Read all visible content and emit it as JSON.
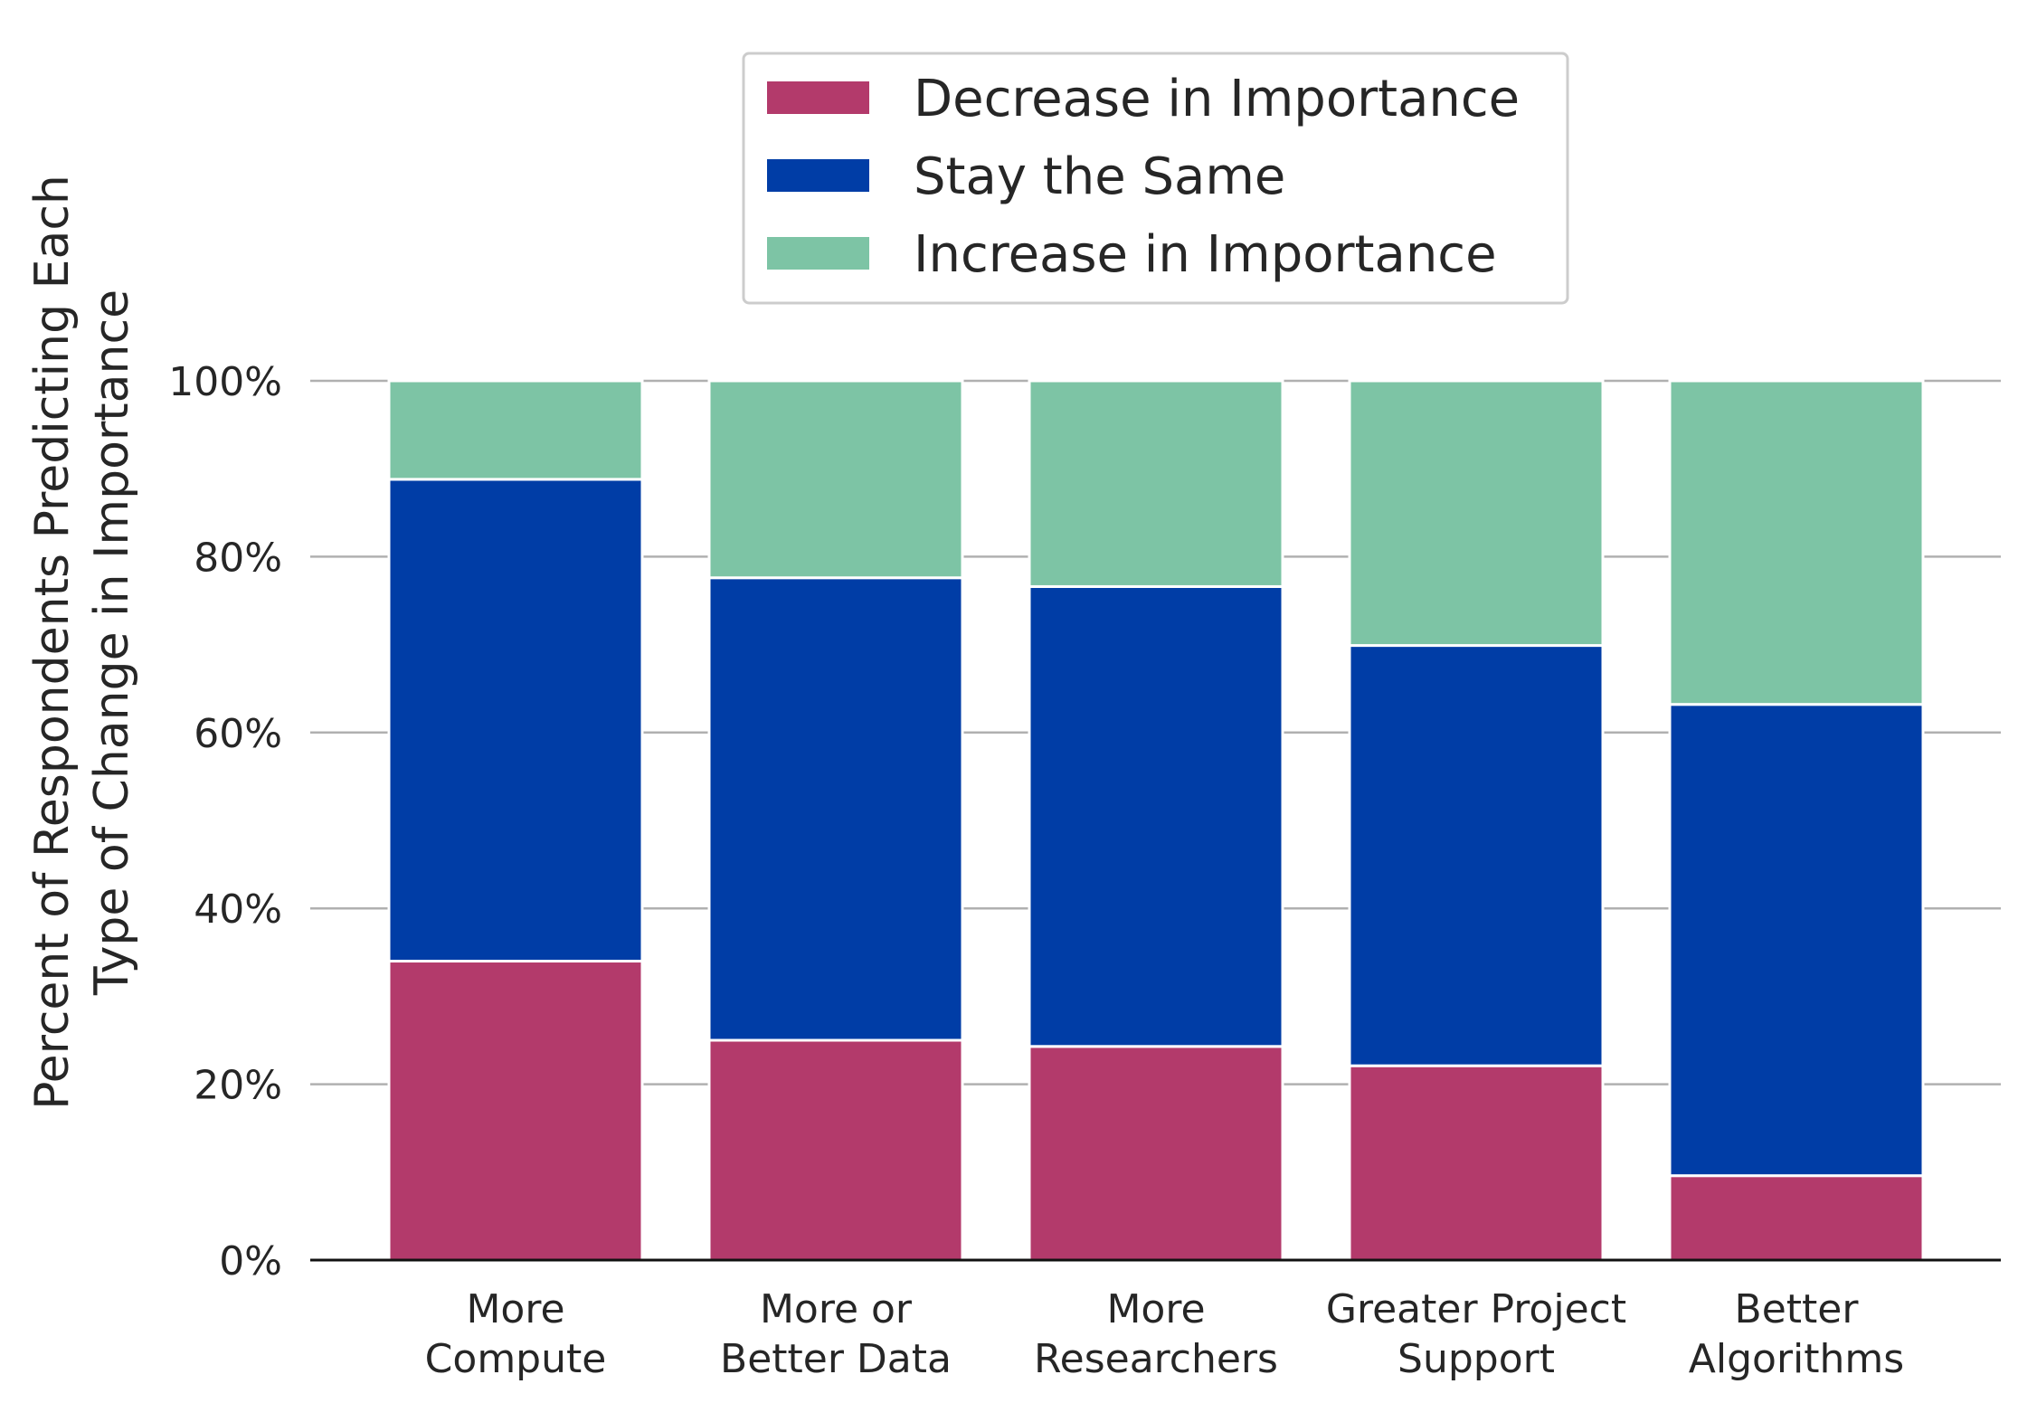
{
  "chart_data": {
    "type": "bar",
    "stacked": true,
    "categories": [
      [
        "More",
        "Compute"
      ],
      [
        "More or",
        "Better Data"
      ],
      [
        "More",
        "Researchers"
      ],
      [
        "Greater Project",
        "Support"
      ],
      [
        "Better",
        "Algorithms"
      ]
    ],
    "series": [
      {
        "name": "Decrease in Importance",
        "color": "#b33a6b",
        "values": [
          34.0,
          25.0,
          24.3,
          22.1,
          9.6
        ]
      },
      {
        "name": "Stay the Same",
        "color": "#003da6",
        "values": [
          54.8,
          52.6,
          52.3,
          47.8,
          53.6
        ]
      },
      {
        "name": "Increase in Importance",
        "color": "#7dc4a5",
        "values": [
          11.2,
          22.4,
          23.4,
          30.1,
          36.8
        ]
      }
    ],
    "ylabel": [
      "Percent of Respondents Predicting Each",
      "Type of Change in Importance"
    ],
    "ylim": [
      0,
      100
    ],
    "yticks": [
      "0%",
      "20%",
      "40%",
      "60%",
      "80%",
      "100%"
    ],
    "grid": "horizontal",
    "legend_position": "top-center"
  }
}
